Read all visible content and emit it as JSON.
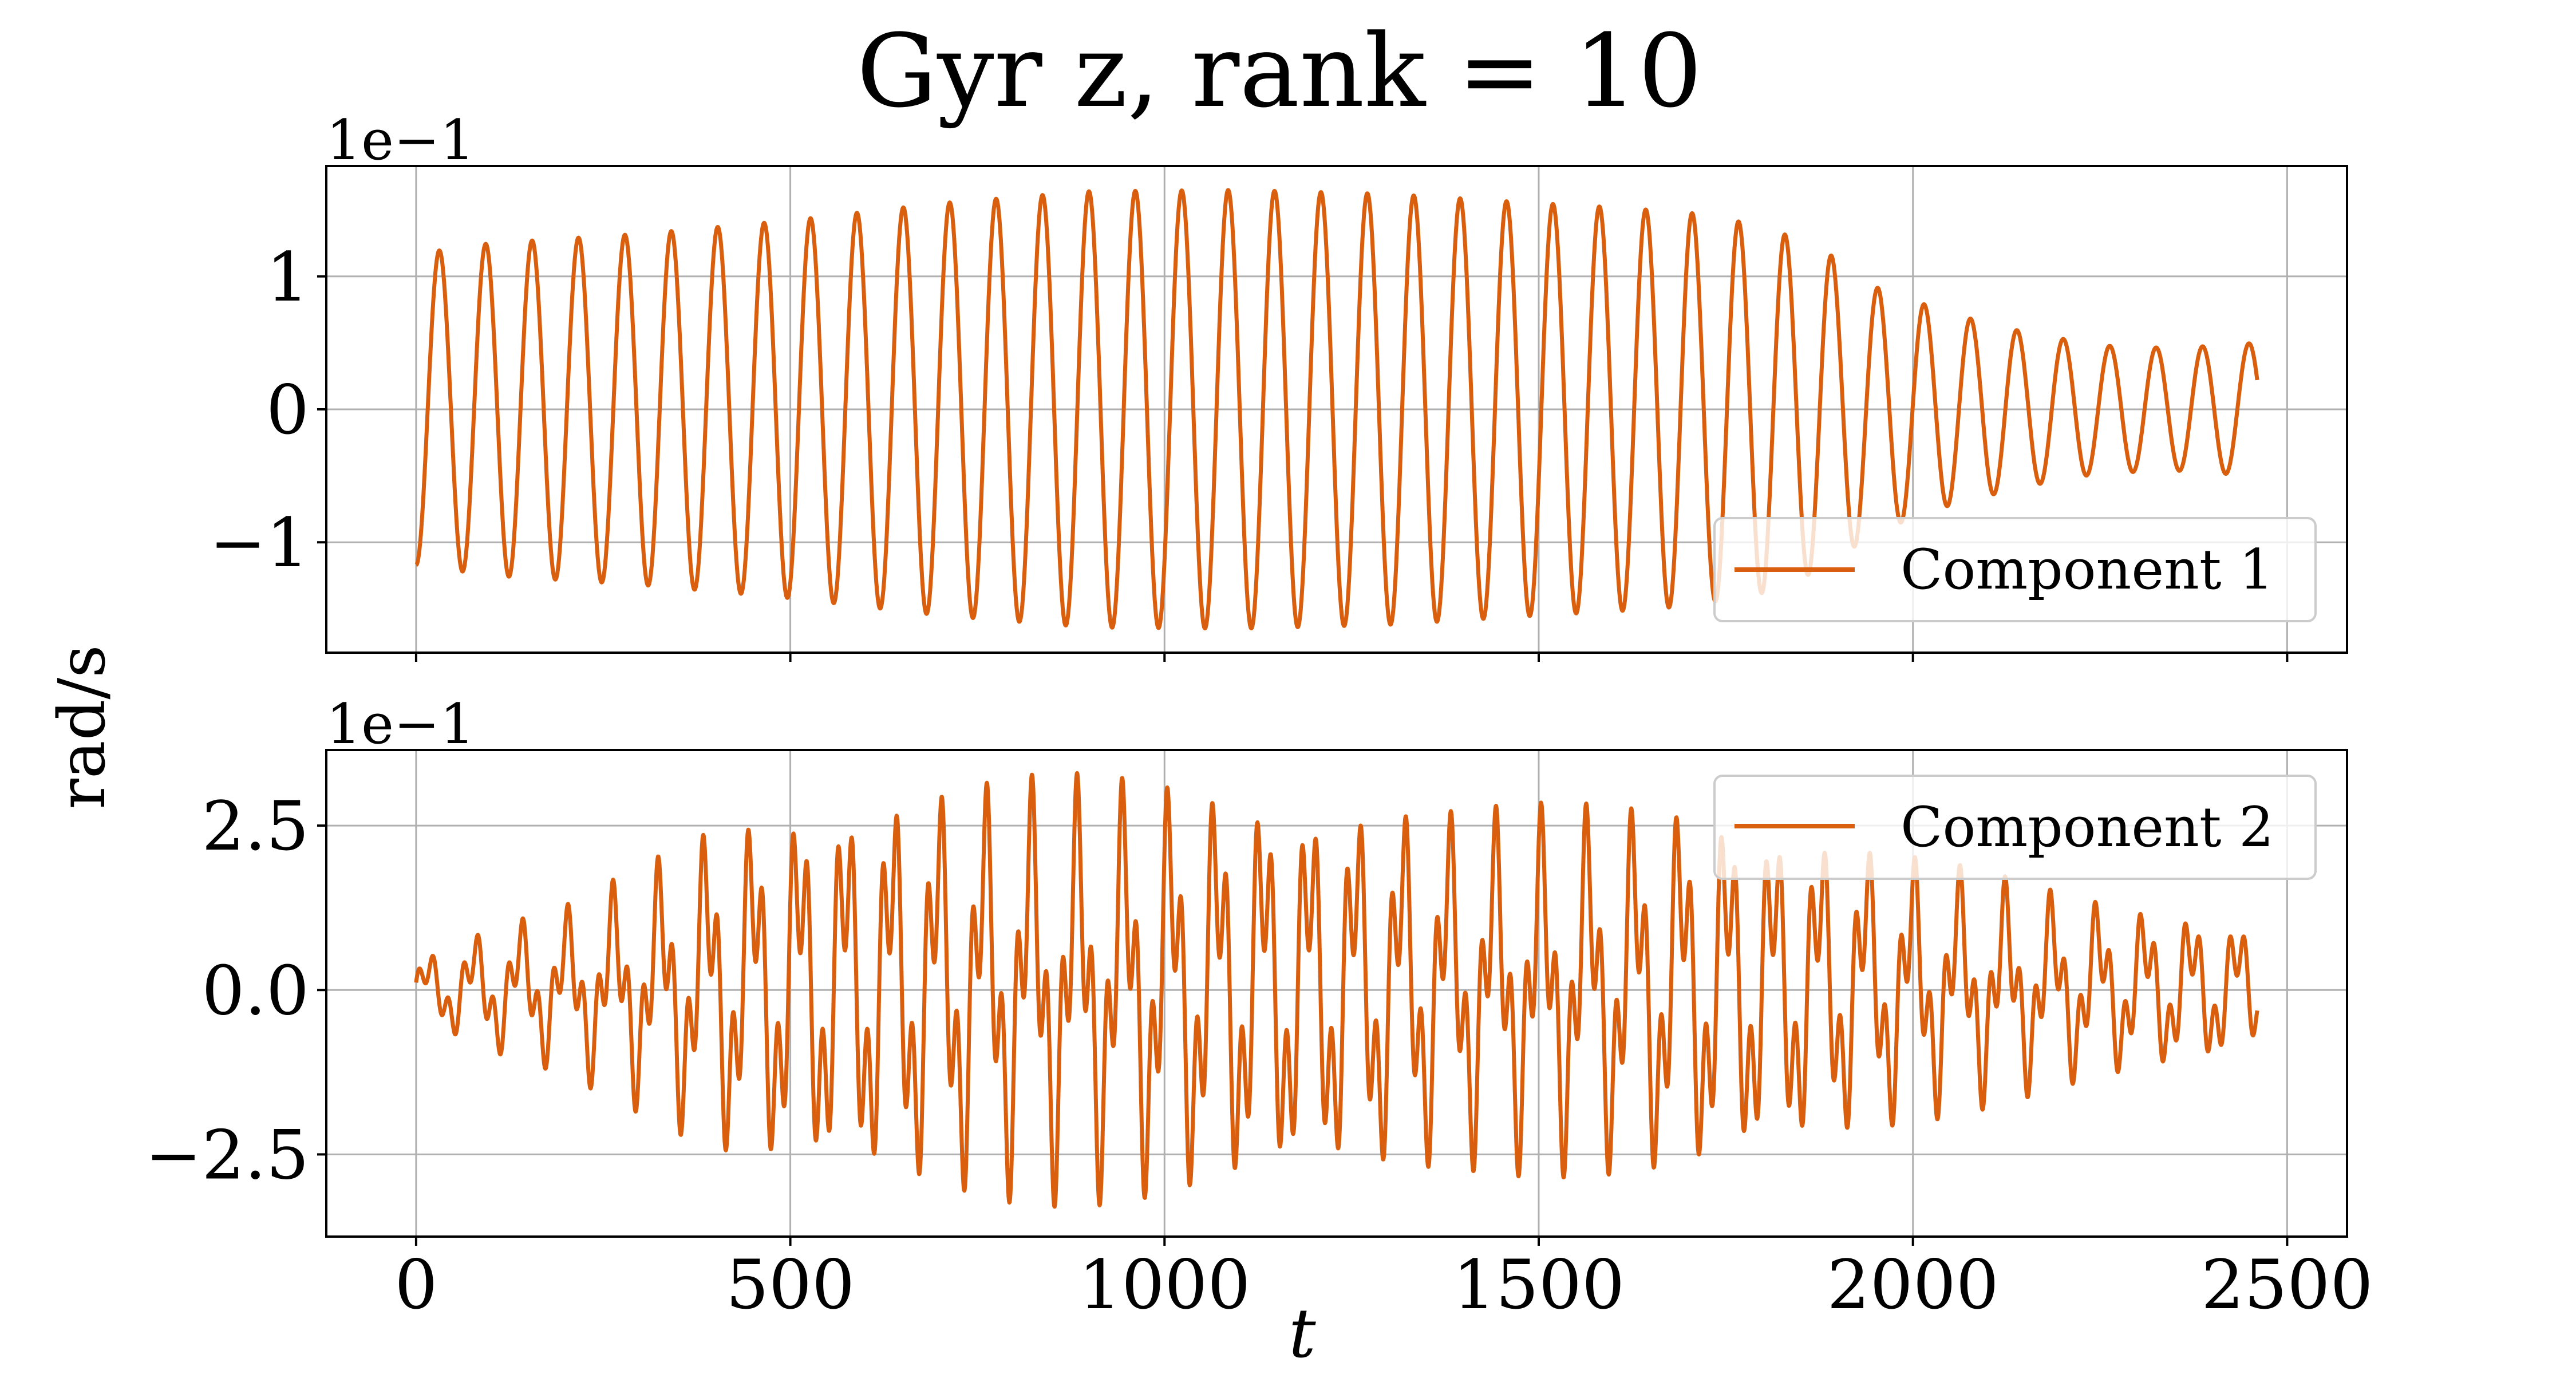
{
  "title": "Gyr z, rank = 10",
  "ylabel": "rad/s",
  "xlabel": "t",
  "line_color": "#d95f0e",
  "chart_data": [
    {
      "type": "line",
      "series": [
        {
          "name": "Component 1"
        }
      ],
      "offset_text": "1e−1",
      "xlim": [
        -120,
        2580
      ],
      "ylim": [
        -1.83,
        1.83
      ],
      "yticks": [
        {
          "value": -1,
          "label": "−1"
        },
        {
          "value": 0,
          "label": "0"
        },
        {
          "value": 1,
          "label": "1"
        }
      ],
      "xticks": [
        0,
        500,
        1000,
        1500,
        2000,
        2500
      ],
      "show_xtick_labels": false,
      "grid": true,
      "legend": "lower right",
      "t_range": [
        0,
        2460
      ],
      "oscillation_period": 62,
      "phase_start": "trough",
      "envelope": [
        [
          0,
          1.17
        ],
        [
          100,
          1.25
        ],
        [
          300,
          1.32
        ],
        [
          500,
          1.42
        ],
        [
          700,
          1.55
        ],
        [
          900,
          1.64
        ],
        [
          1100,
          1.65
        ],
        [
          1300,
          1.62
        ],
        [
          1500,
          1.55
        ],
        [
          1600,
          1.52
        ],
        [
          1700,
          1.48
        ],
        [
          1800,
          1.38
        ],
        [
          1880,
          1.2
        ],
        [
          1950,
          0.92
        ],
        [
          2050,
          0.72
        ],
        [
          2150,
          0.58
        ],
        [
          2250,
          0.48
        ],
        [
          2350,
          0.46
        ],
        [
          2460,
          0.5
        ]
      ]
    },
    {
      "type": "line",
      "series": [
        {
          "name": "Component 2"
        }
      ],
      "offset_text": "1e−1",
      "xlim": [
        -120,
        2580
      ],
      "ylim": [
        -3.75,
        3.65
      ],
      "yticks": [
        {
          "value": -2.5,
          "label": "−2.5"
        },
        {
          "value": 0,
          "label": "0.0"
        },
        {
          "value": 2.5,
          "label": "2.5"
        }
      ],
      "xticks": [
        0,
        500,
        1000,
        1500,
        2000,
        2500
      ],
      "show_xtick_labels": true,
      "grid": true,
      "legend": "upper right",
      "t_range": [
        0,
        2460
      ],
      "carrier_period": 62,
      "beat_period": 20,
      "envelope": [
        [
          0,
          0.5
        ],
        [
          100,
          1.0
        ],
        [
          200,
          1.3
        ],
        [
          300,
          1.9
        ],
        [
          400,
          2.6
        ],
        [
          500,
          2.9
        ],
        [
          600,
          3.05
        ],
        [
          700,
          3.2
        ],
        [
          800,
          3.3
        ],
        [
          900,
          3.3
        ],
        [
          1000,
          3.25
        ],
        [
          1100,
          3.15
        ],
        [
          1200,
          3.0
        ],
        [
          1300,
          2.9
        ],
        [
          1400,
          2.8
        ],
        [
          1500,
          2.85
        ],
        [
          1600,
          2.9
        ],
        [
          1700,
          2.95
        ],
        [
          1800,
          2.7
        ],
        [
          1900,
          2.4
        ],
        [
          2000,
          2.1
        ],
        [
          2100,
          1.8
        ],
        [
          2200,
          1.5
        ],
        [
          2300,
          1.3
        ],
        [
          2400,
          1.2
        ],
        [
          2460,
          1.0
        ]
      ]
    }
  ]
}
